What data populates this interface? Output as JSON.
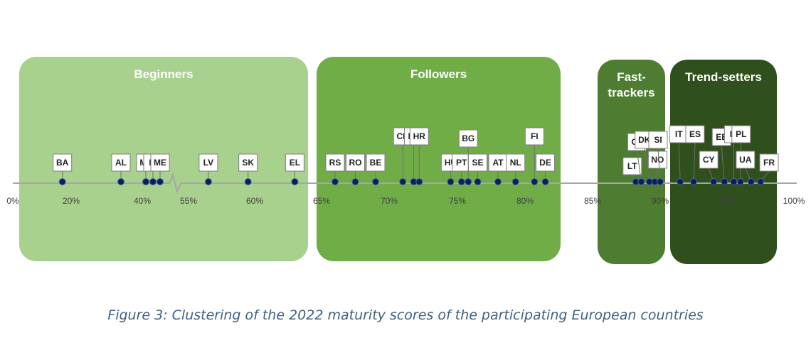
{
  "caption": "Figure 3: Clustering of the 2022 maturity scores of the participating European countries",
  "colors": {
    "beginners": "#a9d18e",
    "followers": "#70ad47",
    "fast_trackers": "#4e7d31",
    "trend_setters": "#2f4f1d",
    "axis": "#a6a6a6",
    "marker": "#0c1f5c"
  },
  "chart_data": {
    "type": "scatter",
    "xlabel": "",
    "ylabel": "",
    "axis_note": "broken axis between 45% and 55%",
    "axis_ticks": [
      "0%",
      "20%",
      "40%",
      "55%",
      "60%",
      "65%",
      "70%",
      "75%",
      "80%",
      "85%",
      "90%",
      "95%",
      "100%"
    ],
    "clusters": [
      {
        "name": "Beginners",
        "range": [
          0,
          65
        ]
      },
      {
        "name": "Followers",
        "range": [
          65,
          83
        ]
      },
      {
        "name": "Fast-trackers",
        "range": [
          85,
          90
        ]
      },
      {
        "name": "Trend-setters",
        "range": [
          90,
          100
        ]
      }
    ],
    "points": [
      {
        "label": "BA",
        "x": 17
      },
      {
        "label": "AL",
        "x": 34
      },
      {
        "label": "MT",
        "x": 41
      },
      {
        "label": "IS",
        "x": 43
      },
      {
        "label": "ME",
        "x": 45
      },
      {
        "label": "LV",
        "x": 56.5
      },
      {
        "label": "SK",
        "x": 59.5
      },
      {
        "label": "EL",
        "x": 63
      },
      {
        "label": "RS",
        "x": 66
      },
      {
        "label": "RO",
        "x": 67.5
      },
      {
        "label": "BE",
        "x": 69
      },
      {
        "label": "CH",
        "x": 71
      },
      {
        "label": "LU",
        "x": 71.8
      },
      {
        "label": "HR",
        "x": 72.2
      },
      {
        "label": "HU",
        "x": 74.5
      },
      {
        "label": "PT",
        "x": 75.3
      },
      {
        "label": "BG",
        "x": 75.8
      },
      {
        "label": "SE",
        "x": 76.5
      },
      {
        "label": "AT",
        "x": 78
      },
      {
        "label": "NL",
        "x": 79.3
      },
      {
        "label": "FI",
        "x": 80.7
      },
      {
        "label": "DE",
        "x": 81.5
      },
      {
        "label": "LT",
        "x": 88.2
      },
      {
        "label": "CZ",
        "x": 88.6
      },
      {
        "label": "DK",
        "x": 89.2
      },
      {
        "label": "NO",
        "x": 89.6
      },
      {
        "label": "SI",
        "x": 90
      },
      {
        "label": "IT",
        "x": 91.5
      },
      {
        "label": "ES",
        "x": 92.5
      },
      {
        "label": "CY",
        "x": 94
      },
      {
        "label": "EE",
        "x": 94.8
      },
      {
        "label": "IE",
        "x": 95.5
      },
      {
        "label": "PL",
        "x": 96
      },
      {
        "label": "UA",
        "x": 96.8
      },
      {
        "label": "FR",
        "x": 97.5
      }
    ]
  }
}
